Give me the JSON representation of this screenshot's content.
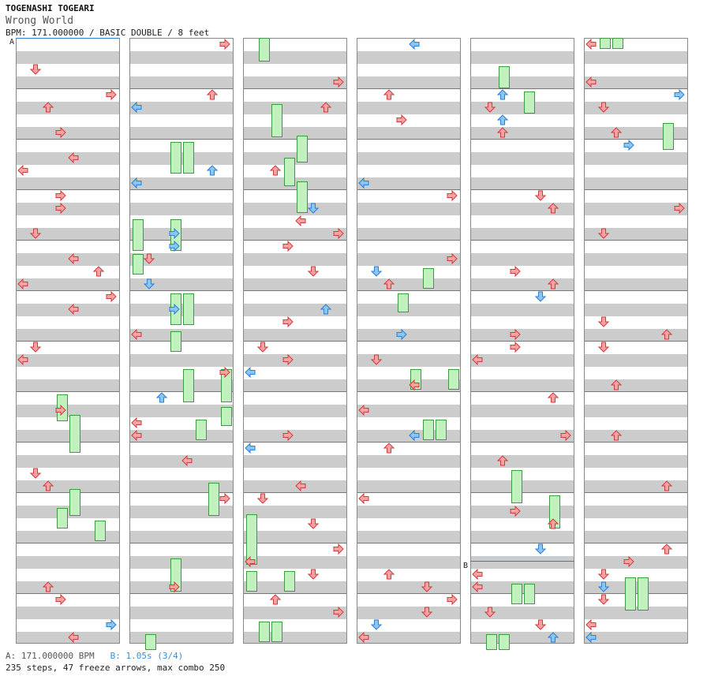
{
  "header": {
    "artist": "TOGENASHI TOGEARI",
    "title": "Wrong World",
    "meta": "BPM: 171.000000 / BASIC DOUBLE / 8 feet"
  },
  "markers": {
    "a": "A",
    "b": "B"
  },
  "footer": {
    "bpm_a": "A: 171.000000 BPM",
    "bpm_b": "B: 1.05s (3/4)",
    "stats": "235 steps, 47 freeze arrows, max combo 250"
  },
  "colors": {
    "red_note": "#f5a3a3",
    "blue_note": "#8ec4f0",
    "freeze": "#bff2bf"
  }
}
